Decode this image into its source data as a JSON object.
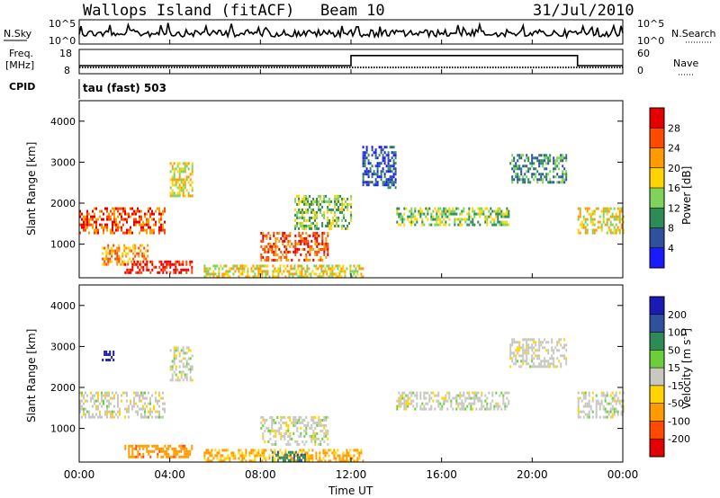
{
  "header": {
    "station": "Wallops Island (fitACF)",
    "beam": "Beam 10",
    "date": "31/Jul/2010"
  },
  "noise_panel": {
    "left_label": "N.Sky",
    "left_ticks": [
      "10^5",
      "10^0"
    ],
    "right_ticks": [
      "10^5",
      "10^0"
    ],
    "right_label": "N.Search"
  },
  "freq_panel": {
    "left_label": "Freq.",
    "left_unit": "[MHz]",
    "left_ticks": [
      "18",
      "8"
    ],
    "right_ticks": [
      "60",
      "0"
    ],
    "right_label": "Nave",
    "nave_levels": [
      {
        "start_h": 0,
        "end_h": 12,
        "value": 20
      },
      {
        "start_h": 12,
        "end_h": 22,
        "value": 45
      },
      {
        "start_h": 22,
        "end_h": 24,
        "value": 20
      }
    ],
    "freq_level_mhz": 10.6
  },
  "cpid": {
    "label": "CPID",
    "mode": "tau (fast) 503"
  },
  "x_axis": {
    "label": "Time UT",
    "ticks": [
      "00:00",
      "04:00",
      "08:00",
      "12:00",
      "16:00",
      "20:00",
      "00:00"
    ]
  },
  "power_panel": {
    "ylabel": "Slant Range [km]",
    "yticks": [
      "1000",
      "2000",
      "3000",
      "4000"
    ],
    "colorbar_label": "Power [dB]",
    "colorbar_ticks": [
      "4",
      "8",
      "12",
      "16",
      "20",
      "24",
      "28"
    ],
    "colors": [
      "#1a1aff",
      "#2f4f9f",
      "#2e8b57",
      "#7fd35a",
      "#ffd400",
      "#ff9b00",
      "#ff4a00",
      "#e40000"
    ]
  },
  "velocity_panel": {
    "ylabel": "Slant Range [km]",
    "yticks": [
      "1000",
      "2000",
      "3000",
      "4000"
    ],
    "colorbar_label": "Velocity [m s^-1]",
    "colorbar_ticks": [
      "200",
      "100",
      "50",
      "15",
      "-15",
      "-50",
      "-100",
      "-200"
    ],
    "colors": [
      "#1a1ab4",
      "#2f4f9f",
      "#2e8b57",
      "#6ccf3a",
      "#c8c8c0",
      "#ffd400",
      "#ff9b00",
      "#ff4a00",
      "#e40000"
    ]
  },
  "chart_data": [
    {
      "type": "heatmap",
      "title": "Power [dB]",
      "ylabel": "Slant Range [km]",
      "xlabel": "Time UT",
      "xlim": [
        "00:00",
        "24:00"
      ],
      "ylim": [
        180,
        4500
      ],
      "colorbar_range": [
        0,
        30
      ],
      "regions": [
        {
          "start_h": 0.0,
          "end_h": 3.8,
          "range_km": [
            1300,
            1900
          ],
          "power_db": 24
        },
        {
          "start_h": 1.0,
          "end_h": 3.0,
          "range_km": [
            500,
            1000
          ],
          "power_db": 20
        },
        {
          "start_h": 2.0,
          "end_h": 5.0,
          "range_km": [
            300,
            600
          ],
          "power_db": 28
        },
        {
          "start_h": 4.0,
          "end_h": 5.0,
          "range_km": [
            2200,
            3000
          ],
          "power_db": 16
        },
        {
          "start_h": 5.5,
          "end_h": 12.5,
          "range_km": [
            200,
            500
          ],
          "power_db": 18
        },
        {
          "start_h": 8.0,
          "end_h": 11.0,
          "range_km": [
            600,
            1300
          ],
          "power_db": 24
        },
        {
          "start_h": 9.5,
          "end_h": 12.0,
          "range_km": [
            1400,
            2200
          ],
          "power_db": 14
        },
        {
          "start_h": 12.5,
          "end_h": 14.0,
          "range_km": [
            2400,
            3400
          ],
          "power_db": 6
        },
        {
          "start_h": 14.0,
          "end_h": 19.0,
          "range_km": [
            1500,
            1900
          ],
          "power_db": 12
        },
        {
          "start_h": 19.0,
          "end_h": 21.5,
          "range_km": [
            2500,
            3200
          ],
          "power_db": 10
        },
        {
          "start_h": 22.0,
          "end_h": 24.0,
          "range_km": [
            1300,
            1900
          ],
          "power_db": 18
        }
      ]
    },
    {
      "type": "heatmap",
      "title": "Velocity [m s^-1]",
      "ylabel": "Slant Range [km]",
      "xlabel": "Time UT",
      "xlim": [
        "00:00",
        "24:00"
      ],
      "ylim": [
        180,
        4500
      ],
      "colorbar_range": [
        -200,
        200
      ],
      "regions": [
        {
          "start_h": 0.0,
          "end_h": 3.8,
          "range_km": [
            1300,
            1900
          ],
          "velocity": 0
        },
        {
          "start_h": 4.0,
          "end_h": 5.0,
          "range_km": [
            2200,
            3000
          ],
          "velocity": 0
        },
        {
          "start_h": 1.0,
          "end_h": 1.6,
          "range_km": [
            2700,
            2900
          ],
          "velocity": 200
        },
        {
          "start_h": 2.0,
          "end_h": 5.0,
          "range_km": [
            300,
            600
          ],
          "velocity": -60
        },
        {
          "start_h": 5.5,
          "end_h": 12.5,
          "range_km": [
            200,
            500
          ],
          "velocity": -40
        },
        {
          "start_h": 8.5,
          "end_h": 10.0,
          "range_km": [
            200,
            450
          ],
          "velocity": 60
        },
        {
          "start_h": 8.0,
          "end_h": 11.0,
          "range_km": [
            600,
            1300
          ],
          "velocity": 0
        },
        {
          "start_h": 14.0,
          "end_h": 19.0,
          "range_km": [
            1500,
            1900
          ],
          "velocity": 0
        },
        {
          "start_h": 19.0,
          "end_h": 21.5,
          "range_km": [
            2500,
            3200
          ],
          "velocity": 0
        },
        {
          "start_h": 22.0,
          "end_h": 24.0,
          "range_km": [
            1300,
            1900
          ],
          "velocity": 0
        }
      ]
    }
  ]
}
